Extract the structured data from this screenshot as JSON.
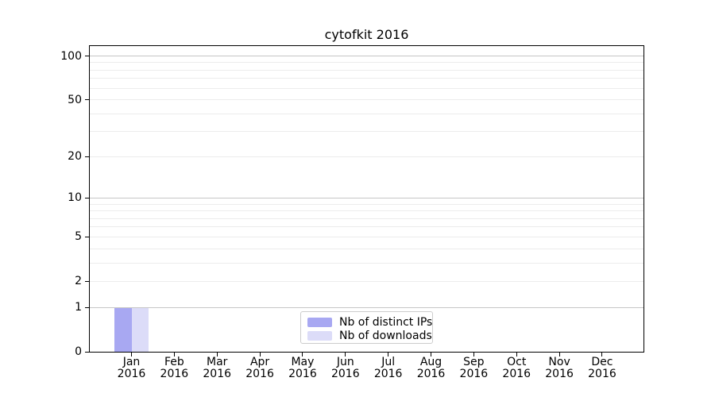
{
  "chart_data": {
    "type": "bar",
    "title": "cytofkit 2016",
    "categories": [
      {
        "month": "Jan",
        "year": "2016"
      },
      {
        "month": "Feb",
        "year": "2016"
      },
      {
        "month": "Mar",
        "year": "2016"
      },
      {
        "month": "Apr",
        "year": "2016"
      },
      {
        "month": "May",
        "year": "2016"
      },
      {
        "month": "Jun",
        "year": "2016"
      },
      {
        "month": "Jul",
        "year": "2016"
      },
      {
        "month": "Aug",
        "year": "2016"
      },
      {
        "month": "Sep",
        "year": "2016"
      },
      {
        "month": "Oct",
        "year": "2016"
      },
      {
        "month": "Nov",
        "year": "2016"
      },
      {
        "month": "Dec",
        "year": "2016"
      }
    ],
    "series": [
      {
        "name": "Nb of distinct IPs",
        "color": "#a8a8f2",
        "values": [
          1,
          0,
          0,
          0,
          0,
          0,
          0,
          0,
          0,
          0,
          0,
          0
        ]
      },
      {
        "name": "Nb of downloads",
        "color": "#dcdcf8",
        "values": [
          1,
          0,
          0,
          0,
          0,
          0,
          0,
          0,
          0,
          0,
          0,
          0
        ]
      }
    ],
    "y_scale": "log10(value+1)",
    "ylim": [
      0,
      117
    ],
    "y_tick_values": [
      0,
      1,
      2,
      5,
      10,
      20,
      50,
      100
    ],
    "y_tick_labels": [
      "0",
      "1",
      "2",
      "5",
      "10",
      "20",
      "50",
      "100"
    ],
    "y_major_gridlines": [
      1,
      10,
      100
    ],
    "y_minor_gridlines": [
      2,
      3,
      4,
      5,
      6,
      7,
      8,
      9,
      20,
      30,
      40,
      50,
      60,
      70,
      80,
      90
    ],
    "grid": "horizontal",
    "legend_position": "bottom-center"
  },
  "colors": {
    "background": "#ffffff",
    "axis": "#000000",
    "text": "#000000",
    "grid_major": "#c6c6c6",
    "grid_minor": "#ececec",
    "legend_border": "#cccccc",
    "legend_background": "#ffffff"
  }
}
